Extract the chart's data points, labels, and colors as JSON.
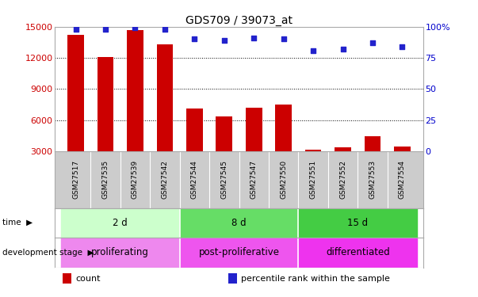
{
  "title": "GDS709 / 39073_at",
  "samples": [
    "GSM27517",
    "GSM27535",
    "GSM27539",
    "GSM27542",
    "GSM27544",
    "GSM27545",
    "GSM27547",
    "GSM27550",
    "GSM27551",
    "GSM27552",
    "GSM27553",
    "GSM27554"
  ],
  "counts": [
    14200,
    12100,
    14700,
    13300,
    7100,
    6400,
    7200,
    7500,
    3200,
    3400,
    4500,
    3500
  ],
  "percentiles": [
    98,
    98,
    99,
    98,
    90,
    89,
    91,
    90,
    81,
    82,
    87,
    84
  ],
  "ylim_left": [
    3000,
    15000
  ],
  "ylim_right": [
    0,
    100
  ],
  "yticks_left": [
    3000,
    6000,
    9000,
    12000,
    15000
  ],
  "yticks_right": [
    0,
    25,
    50,
    75,
    100
  ],
  "yticklabels_right": [
    "0",
    "25",
    "50",
    "75",
    "100%"
  ],
  "bar_color": "#cc0000",
  "dot_color": "#2222cc",
  "grid_color": "#000000",
  "bg_color": "#ffffff",
  "plot_bg": "#ffffff",
  "time_groups": [
    {
      "label": "2 d",
      "start": 0,
      "end": 4,
      "color": "#ccffcc"
    },
    {
      "label": "8 d",
      "start": 4,
      "end": 8,
      "color": "#66dd66"
    },
    {
      "label": "15 d",
      "start": 8,
      "end": 12,
      "color": "#44cc44"
    }
  ],
  "dev_groups": [
    {
      "label": "proliferating",
      "start": 0,
      "end": 4,
      "color": "#ee88ee"
    },
    {
      "label": "post-proliferative",
      "start": 4,
      "end": 8,
      "color": "#ee55ee"
    },
    {
      "label": "differentiated",
      "start": 8,
      "end": 12,
      "color": "#ee33ee"
    }
  ],
  "right_axis_color": "#0000cc",
  "tick_label_color_left": "#cc0000",
  "sample_bg_color": "#cccccc",
  "legend_items": [
    {
      "label": "count",
      "color": "#cc0000"
    },
    {
      "label": "percentile rank within the sample",
      "color": "#2222cc"
    }
  ]
}
